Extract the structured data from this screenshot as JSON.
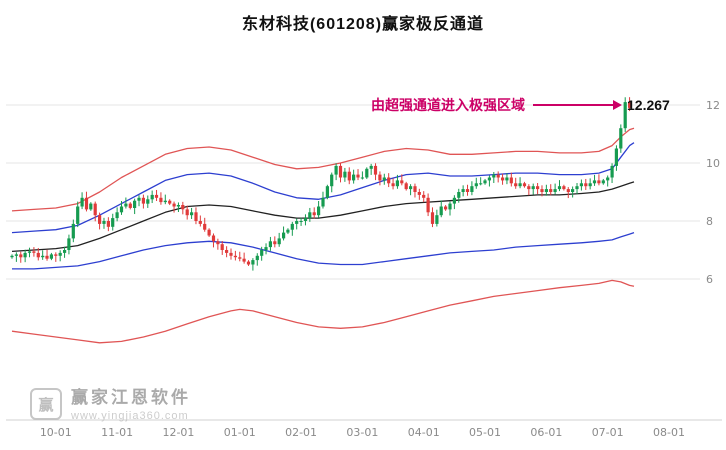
{
  "title": "东材科技(601208)赢家极反通道",
  "annotation": {
    "text": "由超强通道进入极强区域",
    "price_label": "12.267",
    "color": "#cc0066"
  },
  "watermark": {
    "brand": "赢家江恩软件",
    "url": "www.yingjia360.com",
    "logo_glyph": "赢"
  },
  "chart_data": {
    "type": "candlestick",
    "title": "东材科技(601208)赢家极反通道",
    "xlabel": "",
    "ylabel": "",
    "ylim": [
      3.2,
      12.8
    ],
    "y_ticks": [
      12,
      10,
      8,
      6
    ],
    "x_tick_labels": [
      "10-01",
      "11-01",
      "12-01",
      "01-01",
      "02-01",
      "03-01",
      "04-01",
      "05-01",
      "06-01",
      "07-01",
      "08-01"
    ],
    "x_tick_index": [
      10,
      24,
      38,
      52,
      66,
      80,
      94,
      108,
      122,
      136,
      150
    ],
    "grid": "horizontal-only",
    "colors": {
      "up": "#169b50",
      "down": "#e03a3a",
      "channel_outer": "#e05555",
      "channel_inner": "#2d3fd0",
      "channel_mid": "#222222"
    },
    "series_close": [
      6.8,
      6.85,
      6.75,
      6.9,
      6.95,
      6.9,
      6.75,
      6.8,
      6.7,
      6.85,
      6.8,
      6.9,
      7.0,
      7.4,
      7.9,
      8.5,
      8.8,
      8.4,
      8.6,
      8.2,
      7.9,
      8.0,
      7.8,
      8.1,
      8.3,
      8.5,
      8.6,
      8.45,
      8.7,
      8.8,
      8.6,
      8.75,
      8.9,
      8.8,
      8.65,
      8.7,
      8.6,
      8.5,
      8.55,
      8.4,
      8.2,
      8.3,
      8.0,
      7.9,
      7.7,
      7.5,
      7.3,
      7.2,
      7.0,
      6.9,
      6.8,
      6.75,
      6.7,
      6.6,
      6.5,
      6.65,
      6.8,
      7.0,
      7.1,
      7.3,
      7.2,
      7.4,
      7.6,
      7.7,
      7.9,
      8.0,
      8.0,
      8.1,
      8.3,
      8.2,
      8.5,
      8.8,
      9.2,
      9.6,
      9.9,
      9.5,
      9.7,
      9.4,
      9.6,
      9.5,
      9.5,
      9.8,
      9.9,
      9.6,
      9.4,
      9.5,
      9.3,
      9.2,
      9.4,
      9.3,
      9.1,
      9.2,
      9.0,
      8.9,
      8.8,
      8.3,
      7.9,
      8.2,
      8.5,
      8.4,
      8.6,
      8.8,
      9.0,
      9.1,
      9.0,
      9.2,
      9.3,
      9.3,
      9.4,
      9.5,
      9.6,
      9.5,
      9.4,
      9.5,
      9.3,
      9.2,
      9.3,
      9.2,
      9.1,
      9.2,
      9.1,
      9.0,
      9.1,
      9.0,
      9.1,
      9.2,
      9.1,
      9.0,
      9.1,
      9.2,
      9.3,
      9.2,
      9.3,
      9.4,
      9.3,
      9.4,
      9.5,
      9.9,
      10.5,
      11.2,
      12.1,
      11.9
    ],
    "peak": {
      "index": 140,
      "price": 12.267,
      "label": "12.267"
    },
    "channels": [
      {
        "name": "upper-red-rail",
        "color": "#e05555",
        "width": 1.3,
        "points": [
          [
            0,
            8.35
          ],
          [
            5,
            8.4
          ],
          [
            10,
            8.45
          ],
          [
            15,
            8.6
          ],
          [
            20,
            9.0
          ],
          [
            25,
            9.5
          ],
          [
            30,
            9.9
          ],
          [
            35,
            10.3
          ],
          [
            40,
            10.5
          ],
          [
            45,
            10.55
          ],
          [
            50,
            10.45
          ],
          [
            55,
            10.2
          ],
          [
            60,
            9.95
          ],
          [
            65,
            9.8
          ],
          [
            70,
            9.85
          ],
          [
            75,
            10.0
          ],
          [
            80,
            10.2
          ],
          [
            85,
            10.4
          ],
          [
            90,
            10.5
          ],
          [
            95,
            10.45
          ],
          [
            100,
            10.3
          ],
          [
            105,
            10.3
          ],
          [
            110,
            10.35
          ],
          [
            115,
            10.4
          ],
          [
            120,
            10.4
          ],
          [
            125,
            10.35
          ],
          [
            130,
            10.35
          ],
          [
            134,
            10.4
          ],
          [
            137,
            10.6
          ],
          [
            139,
            10.9
          ],
          [
            141,
            11.15
          ],
          [
            142,
            11.2
          ]
        ]
      },
      {
        "name": "upper-blue-rail",
        "color": "#2d3fd0",
        "width": 1.3,
        "points": [
          [
            0,
            7.6
          ],
          [
            5,
            7.65
          ],
          [
            10,
            7.7
          ],
          [
            15,
            7.85
          ],
          [
            20,
            8.2
          ],
          [
            25,
            8.6
          ],
          [
            30,
            9.0
          ],
          [
            35,
            9.4
          ],
          [
            40,
            9.6
          ],
          [
            45,
            9.65
          ],
          [
            50,
            9.55
          ],
          [
            55,
            9.3
          ],
          [
            60,
            9.0
          ],
          [
            65,
            8.8
          ],
          [
            70,
            8.75
          ],
          [
            75,
            8.9
          ],
          [
            80,
            9.15
          ],
          [
            85,
            9.4
          ],
          [
            90,
            9.6
          ],
          [
            95,
            9.65
          ],
          [
            100,
            9.55
          ],
          [
            105,
            9.55
          ],
          [
            110,
            9.6
          ],
          [
            115,
            9.65
          ],
          [
            120,
            9.65
          ],
          [
            125,
            9.6
          ],
          [
            130,
            9.6
          ],
          [
            134,
            9.65
          ],
          [
            137,
            9.8
          ],
          [
            139,
            10.2
          ],
          [
            141,
            10.6
          ],
          [
            142,
            10.7
          ]
        ]
      },
      {
        "name": "mid-black-line",
        "color": "#222222",
        "width": 1.3,
        "points": [
          [
            0,
            6.95
          ],
          [
            5,
            7.0
          ],
          [
            10,
            7.05
          ],
          [
            15,
            7.15
          ],
          [
            20,
            7.4
          ],
          [
            25,
            7.7
          ],
          [
            30,
            8.0
          ],
          [
            35,
            8.3
          ],
          [
            40,
            8.5
          ],
          [
            45,
            8.55
          ],
          [
            50,
            8.5
          ],
          [
            55,
            8.35
          ],
          [
            60,
            8.2
          ],
          [
            65,
            8.1
          ],
          [
            70,
            8.1
          ],
          [
            75,
            8.2
          ],
          [
            80,
            8.35
          ],
          [
            85,
            8.5
          ],
          [
            90,
            8.6
          ],
          [
            95,
            8.65
          ],
          [
            100,
            8.7
          ],
          [
            105,
            8.75
          ],
          [
            110,
            8.8
          ],
          [
            115,
            8.85
          ],
          [
            120,
            8.9
          ],
          [
            125,
            8.9
          ],
          [
            130,
            8.95
          ],
          [
            134,
            9.0
          ],
          [
            137,
            9.1
          ],
          [
            139,
            9.2
          ],
          [
            141,
            9.3
          ],
          [
            142,
            9.35
          ]
        ]
      },
      {
        "name": "lower-blue-rail",
        "color": "#2d3fd0",
        "width": 1.3,
        "points": [
          [
            0,
            6.35
          ],
          [
            5,
            6.35
          ],
          [
            10,
            6.4
          ],
          [
            15,
            6.45
          ],
          [
            20,
            6.6
          ],
          [
            25,
            6.8
          ],
          [
            30,
            7.0
          ],
          [
            35,
            7.15
          ],
          [
            40,
            7.25
          ],
          [
            45,
            7.3
          ],
          [
            50,
            7.25
          ],
          [
            55,
            7.1
          ],
          [
            60,
            6.9
          ],
          [
            65,
            6.7
          ],
          [
            70,
            6.55
          ],
          [
            75,
            6.5
          ],
          [
            80,
            6.5
          ],
          [
            85,
            6.6
          ],
          [
            90,
            6.7
          ],
          [
            95,
            6.8
          ],
          [
            100,
            6.9
          ],
          [
            105,
            6.95
          ],
          [
            110,
            7.0
          ],
          [
            115,
            7.1
          ],
          [
            120,
            7.15
          ],
          [
            125,
            7.2
          ],
          [
            130,
            7.25
          ],
          [
            134,
            7.3
          ],
          [
            137,
            7.35
          ],
          [
            139,
            7.45
          ],
          [
            141,
            7.55
          ],
          [
            142,
            7.6
          ]
        ]
      },
      {
        "name": "lower-red-rail",
        "color": "#e05555",
        "width": 1.3,
        "points": [
          [
            0,
            4.2
          ],
          [
            5,
            4.1
          ],
          [
            10,
            4.0
          ],
          [
            15,
            3.9
          ],
          [
            20,
            3.8
          ],
          [
            25,
            3.85
          ],
          [
            30,
            4.0
          ],
          [
            35,
            4.2
          ],
          [
            40,
            4.45
          ],
          [
            45,
            4.7
          ],
          [
            50,
            4.9
          ],
          [
            52,
            4.95
          ],
          [
            55,
            4.9
          ],
          [
            60,
            4.7
          ],
          [
            65,
            4.5
          ],
          [
            70,
            4.35
          ],
          [
            75,
            4.3
          ],
          [
            80,
            4.35
          ],
          [
            85,
            4.5
          ],
          [
            90,
            4.7
          ],
          [
            95,
            4.9
          ],
          [
            100,
            5.1
          ],
          [
            105,
            5.25
          ],
          [
            110,
            5.4
          ],
          [
            115,
            5.5
          ],
          [
            120,
            5.6
          ],
          [
            125,
            5.7
          ],
          [
            130,
            5.78
          ],
          [
            134,
            5.85
          ],
          [
            137,
            5.95
          ],
          [
            139,
            5.9
          ],
          [
            141,
            5.78
          ],
          [
            142,
            5.75
          ]
        ]
      }
    ]
  }
}
